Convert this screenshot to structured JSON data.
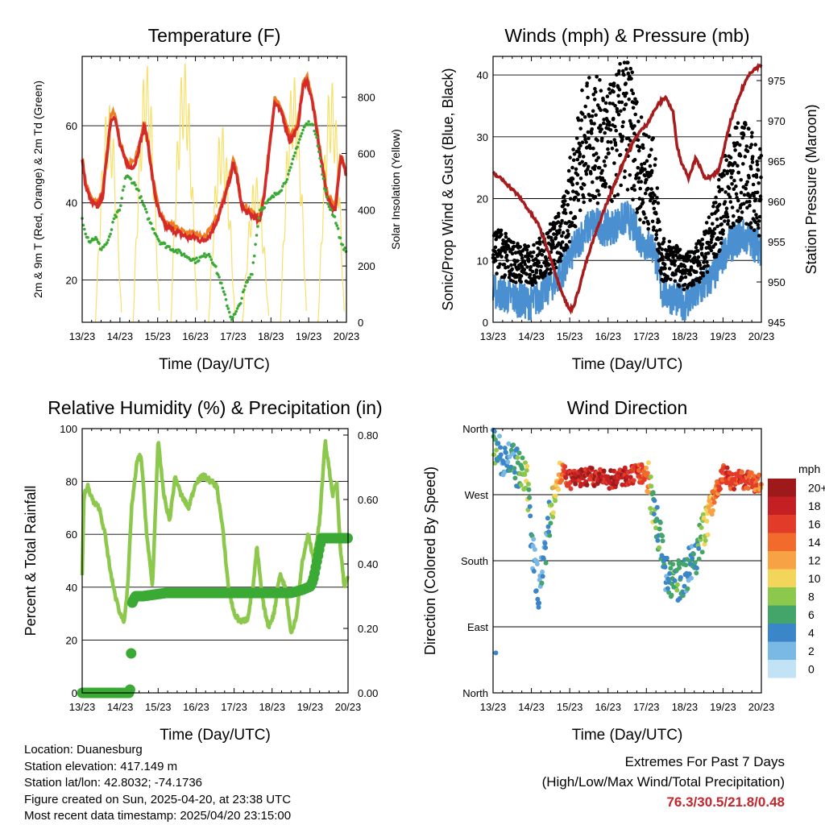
{
  "footer": {
    "location": "Location: Duanesburg",
    "elevation": "Station elevation: 417.149 m",
    "latlon": "Station lat/lon: 42.8032; -74.1736",
    "created": "Figure created on Sun, 2025-04-20, at 23:38 UTC",
    "timestamp": "Most recent data timestamp: 2025/04/20 23:15:00",
    "extremes_title": "Extremes For Past 7 Days",
    "extremes_sub": "(High/Low/Max Wind/Total Precipitation)",
    "extremes_values": "76.3/30.5/21.8/0.48",
    "extremes_color": "#c1272d"
  },
  "chart_data": [
    {
      "id": "temperature",
      "type": "line",
      "title": "Temperature (F)",
      "xlabel": "Time (Day/UTC)",
      "ylabel": "2m & 9m T (Red, Orange) & 2m Td (Green)",
      "y2label": "Solar Insolation (Yellow)",
      "xticks": [
        "13/23",
        "14/23",
        "15/23",
        "16/23",
        "17/23",
        "18/23",
        "19/23",
        "20/23"
      ],
      "xlim": [
        0,
        7
      ],
      "ylim": [
        9,
        78
      ],
      "yticks": [
        20,
        40,
        60
      ],
      "y2lim": [
        0,
        945
      ],
      "y2ticks": [
        0,
        200,
        400,
        600,
        800
      ],
      "grid": "horizontal",
      "series": [
        {
          "name": "2m T",
          "color": "#d42a2a",
          "x": [
            0,
            0.1,
            0.25,
            0.4,
            0.55,
            0.65,
            0.75,
            0.85,
            0.95,
            1.0,
            1.1,
            1.25,
            1.4,
            1.55,
            1.65,
            1.75,
            1.85,
            1.95,
            2.05,
            2.2,
            2.4,
            2.6,
            2.8,
            3.0,
            3.2,
            3.4,
            3.6,
            3.8,
            3.9,
            4.0,
            4.1,
            4.2,
            4.3,
            4.45,
            4.6,
            4.7,
            4.85,
            5.0,
            5.1,
            5.3,
            5.5,
            5.7,
            5.85,
            5.95,
            6.1,
            6.3,
            6.5,
            6.7,
            6.85,
            7.0
          ],
          "y": [
            51,
            44,
            40,
            39,
            42,
            52,
            61,
            63,
            58,
            55,
            52,
            49,
            50,
            56,
            60,
            55,
            47,
            41,
            37,
            34,
            33,
            32,
            31,
            31,
            30,
            32,
            36,
            42,
            46,
            50,
            47,
            40,
            38,
            37,
            36,
            35,
            44,
            58,
            66,
            63,
            56,
            59,
            70,
            72,
            66,
            53,
            41,
            38,
            52,
            47
          ]
        },
        {
          "name": "9m T",
          "color": "#f07c22",
          "x": [
            0,
            0.1,
            0.25,
            0.4,
            0.55,
            0.65,
            0.75,
            0.85,
            0.95,
            1.0,
            1.1,
            1.25,
            1.4,
            1.55,
            1.65,
            1.75,
            1.85,
            1.95,
            2.05,
            2.2,
            2.4,
            2.6,
            2.8,
            3.0,
            3.2,
            3.4,
            3.6,
            3.8,
            3.9,
            4.0,
            4.1,
            4.2,
            4.3,
            4.45,
            4.6,
            4.7,
            4.85,
            5.0,
            5.1,
            5.3,
            5.5,
            5.7,
            5.85,
            5.95,
            6.1,
            6.3,
            6.5,
            6.7,
            6.85,
            7.0
          ],
          "y": [
            52,
            45,
            41,
            40,
            43,
            53,
            62,
            64,
            59,
            56,
            53,
            50,
            51,
            57,
            61,
            56,
            48,
            42,
            38,
            35,
            34,
            33,
            32,
            32,
            31,
            33,
            37,
            43,
            47,
            51,
            48,
            41,
            39,
            38,
            37,
            36,
            45,
            59,
            67,
            64,
            57,
            60,
            71,
            73,
            67,
            54,
            42,
            39,
            53,
            48
          ]
        },
        {
          "name": "2m Td",
          "color": "#3aaa35",
          "x": [
            0,
            0.1,
            0.2,
            0.35,
            0.5,
            0.7,
            0.85,
            1.0,
            1.15,
            1.3,
            1.45,
            1.6,
            1.75,
            1.9,
            2.05,
            2.2,
            2.4,
            2.6,
            2.8,
            3.0,
            3.2,
            3.35,
            3.5,
            3.65,
            3.8,
            3.95,
            4.05,
            4.15,
            4.25,
            4.35,
            4.5,
            4.7,
            4.9,
            5.1,
            5.3,
            5.5,
            5.7,
            5.9,
            6.05,
            6.2,
            6.35,
            6.5,
            6.7,
            6.85,
            7.0
          ],
          "y": [
            36,
            32,
            30,
            31,
            28,
            30,
            36,
            38,
            47,
            46,
            44,
            40,
            36,
            33,
            30,
            29,
            28,
            27,
            26,
            25,
            26,
            27,
            24,
            20,
            15,
            10,
            11,
            13,
            16,
            19,
            22,
            38,
            40,
            42,
            44,
            48,
            55,
            60,
            61,
            58,
            48,
            40,
            36,
            30,
            27
          ]
        },
        {
          "name": "Solar Insolation",
          "color": "#f7e06a",
          "axis": "y2",
          "peaks": [
            0.7,
            1.7,
            2.7,
            3.7,
            4.6,
            5.6,
            6.6
          ],
          "heights": [
            780,
            920,
            930,
            700,
            520,
            880,
            860
          ]
        }
      ]
    },
    {
      "id": "winds",
      "type": "scatter",
      "title": "Winds (mph) & Pressure (mb)",
      "xlabel": "Time (Day/UTC)",
      "ylabel": "Sonic/Prop Wind & Gust (Blue, Black)",
      "y2label": "Station Pressure (Maroon)",
      "xticks": [
        "13/23",
        "14/23",
        "15/23",
        "16/23",
        "17/23",
        "18/23",
        "19/23",
        "20/23"
      ],
      "xlim": [
        0,
        7
      ],
      "ylim": [
        0,
        43
      ],
      "yticks": [
        0,
        10,
        20,
        30,
        40
      ],
      "y2lim": [
        945,
        978
      ],
      "y2ticks": [
        945,
        950,
        955,
        960,
        965,
        970,
        975
      ],
      "grid": "horizontal",
      "series": [
        {
          "name": "Gust",
          "color": "#000000",
          "x": [
            0,
            0.5,
            1.0,
            1.5,
            1.8,
            2.3,
            2.6,
            3.0,
            3.5,
            3.9,
            4.2,
            4.4,
            4.7,
            5.0,
            5.4,
            5.8,
            6.1,
            6.5,
            7.0
          ],
          "y": [
            12,
            10,
            9,
            12,
            14,
            28,
            30,
            28,
            33,
            24,
            22,
            10,
            10,
            8,
            10,
            15,
            22,
            25,
            21
          ]
        },
        {
          "name": "Wind",
          "color": "#4a90d0",
          "x": [
            0,
            0.5,
            1.0,
            1.5,
            1.8,
            2.3,
            2.6,
            3.0,
            3.5,
            3.9,
            4.2,
            4.4,
            4.7,
            5.0,
            5.4,
            5.8,
            6.1,
            6.5,
            7.0
          ],
          "y": [
            5,
            4,
            3,
            6,
            8,
            14,
            16,
            15,
            17,
            13,
            12,
            5,
            4,
            3,
            5,
            8,
            12,
            14,
            12
          ]
        },
        {
          "name": "Pressure",
          "color": "#a61c1c",
          "axis": "y2",
          "x": [
            0,
            0.3,
            0.7,
            1.2,
            1.5,
            1.7,
            1.9,
            2.0,
            2.1,
            2.2,
            2.4,
            2.6,
            2.9,
            3.2,
            3.5,
            3.8,
            4.0,
            4.3,
            4.5,
            4.7,
            4.8,
            4.9,
            5.1,
            5.3,
            5.5,
            5.7,
            5.9,
            6.2,
            6.5,
            6.7,
            6.85,
            7.0
          ],
          "y": [
            963.5,
            962.5,
            960.5,
            957,
            953,
            950,
            947.5,
            946.5,
            947,
            948.5,
            952,
            955,
            959,
            962.5,
            966,
            968.5,
            969.5,
            972,
            973,
            971,
            967,
            965,
            963,
            965.5,
            963,
            963,
            964,
            970,
            974,
            976,
            976.5,
            977
          ]
        }
      ]
    },
    {
      "id": "humidity",
      "type": "line",
      "title": "Relative Humidity (%) & Precipitation (in)",
      "xlabel": "Time (Day/UTC)",
      "ylabel": "Percent & Total Rainfall",
      "xticks": [
        "13/23",
        "14/23",
        "15/23",
        "16/23",
        "17/23",
        "18/23",
        "19/23",
        "20/23"
      ],
      "xlim": [
        0,
        7
      ],
      "ylim": [
        0,
        100
      ],
      "yticks": [
        0,
        20,
        40,
        60,
        80,
        100
      ],
      "y2lim": [
        0,
        0.82
      ],
      "y2ticks": [
        "0.00",
        "0.20",
        "0.40",
        "0.60",
        "0.80"
      ],
      "grid": "horizontal",
      "series": [
        {
          "name": "Relative Humidity",
          "color": "#8cc84b",
          "x": [
            0,
            0.05,
            0.15,
            0.3,
            0.45,
            0.6,
            0.75,
            0.9,
            1.0,
            1.1,
            1.2,
            1.3,
            1.45,
            1.55,
            1.7,
            1.85,
            2.0,
            2.15,
            2.3,
            2.45,
            2.6,
            2.8,
            3.0,
            3.2,
            3.4,
            3.55,
            3.7,
            3.85,
            4.0,
            4.1,
            4.2,
            4.35,
            4.5,
            4.6,
            4.75,
            4.9,
            5.05,
            5.2,
            5.35,
            5.5,
            5.65,
            5.8,
            5.95,
            6.1,
            6.25,
            6.4,
            6.5,
            6.6,
            6.7,
            6.8,
            6.9,
            7.0
          ],
          "y": [
            45,
            75,
            78,
            72,
            70,
            60,
            45,
            35,
            30,
            27,
            40,
            70,
            88,
            90,
            60,
            40,
            95,
            75,
            65,
            82,
            75,
            70,
            80,
            82,
            80,
            78,
            62,
            40,
            30,
            28,
            27,
            28,
            40,
            55,
            35,
            25,
            30,
            45,
            40,
            22,
            30,
            50,
            60,
            50,
            65,
            95,
            85,
            75,
            80,
            55,
            40,
            45
          ]
        },
        {
          "name": "Total Precipitation",
          "color": "#3aaa35",
          "axis": "y2",
          "x": [
            0,
            1.25,
            1.26,
            1.3,
            1.32,
            1.4,
            1.6,
            2.2,
            3.0,
            4.0,
            4.5,
            5.0,
            5.5,
            5.8,
            6.0,
            6.05,
            6.1,
            6.2,
            6.3,
            7.0
          ],
          "y": [
            0,
            0,
            0.01,
            0.16,
            0.28,
            0.3,
            0.3,
            0.31,
            0.31,
            0.31,
            0.31,
            0.31,
            0.31,
            0.32,
            0.33,
            0.34,
            0.36,
            0.42,
            0.48,
            0.48
          ]
        }
      ]
    },
    {
      "id": "winddir",
      "type": "scatter",
      "title": "Wind Direction",
      "xlabel": "Time (Day/UTC)",
      "ylabel": "Direction (Colored By Speed)",
      "xticks": [
        "13/23",
        "14/23",
        "15/23",
        "16/23",
        "17/23",
        "18/23",
        "19/23",
        "20/23"
      ],
      "xlim": [
        0,
        7
      ],
      "ylim": [
        0,
        360
      ],
      "yticks": [
        "North",
        "East",
        "South",
        "West",
        "North"
      ],
      "grid": "horizontal",
      "legend_title": "mph",
      "legend": [
        "20+",
        "18",
        "16",
        "14",
        "12",
        "10",
        "8",
        "6",
        "4",
        "2",
        "0"
      ],
      "legend_colors": [
        "#9e1a1a",
        "#c42024",
        "#e23b2a",
        "#f26a2c",
        "#f8a246",
        "#f3d55b",
        "#8cc84b",
        "#44a56a",
        "#3a86c8",
        "#7ab8e6",
        "#c2e2f6"
      ],
      "series": [
        {
          "name": "Direction",
          "x": [
            0,
            0.2,
            0.4,
            0.7,
            0.9,
            1.0,
            1.2,
            1.4,
            1.6,
            1.8,
            2.0,
            2.5,
            3.0,
            3.5,
            4.0,
            4.2,
            4.4,
            4.5,
            4.7,
            4.9,
            5.1,
            5.3,
            5.5,
            5.7,
            6.0,
            6.2,
            6.5,
            7.0
          ],
          "y": [
            345,
            325,
            320,
            300,
            280,
            200,
            140,
            210,
            280,
            300,
            290,
            295,
            290,
            295,
            300,
            250,
            200,
            160,
            150,
            155,
            170,
            190,
            220,
            260,
            300,
            290,
            290,
            285
          ],
          "speed": [
            6,
            4,
            4,
            6,
            8,
            4,
            3,
            4,
            10,
            14,
            18,
            18,
            18,
            18,
            14,
            6,
            5,
            4,
            6,
            5,
            4,
            5,
            8,
            12,
            16,
            16,
            16,
            14
          ]
        }
      ]
    }
  ]
}
